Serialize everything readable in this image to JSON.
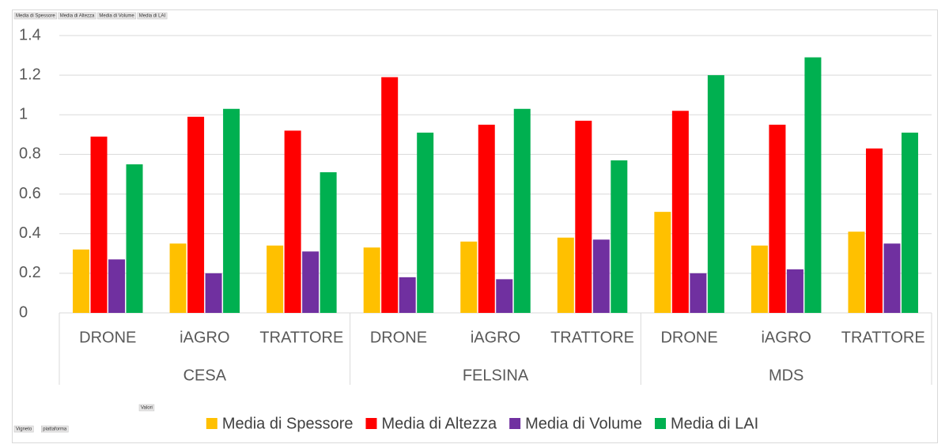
{
  "chart_data": {
    "type": "bar",
    "categories": [
      "DRONE",
      "iAGRO",
      "TRATTORE",
      "DRONE",
      "iAGRO",
      "TRATTORE",
      "DRONE",
      "iAGRO",
      "TRATTORE"
    ],
    "groups": [
      "CESA",
      "FELSINA",
      "MDS"
    ],
    "series": [
      {
        "name": "Media di Spessore",
        "color": "#ffc000",
        "values": [
          0.32,
          0.35,
          0.34,
          0.33,
          0.36,
          0.38,
          0.51,
          0.34,
          0.41
        ]
      },
      {
        "name": "Media di Altezza",
        "color": "#ff0000",
        "values": [
          0.89,
          0.99,
          0.92,
          1.19,
          0.95,
          0.97,
          1.02,
          0.95,
          0.83
        ]
      },
      {
        "name": "Media di Volume",
        "color": "#7030a0",
        "values": [
          0.27,
          0.2,
          0.31,
          0.18,
          0.17,
          0.37,
          0.2,
          0.22,
          0.35
        ]
      },
      {
        "name": "Media di LAI",
        "color": "#00b050",
        "values": [
          0.75,
          1.03,
          0.71,
          0.91,
          1.03,
          0.77,
          1.2,
          1.29,
          0.91
        ]
      }
    ],
    "ylim": [
      0,
      1.4
    ],
    "yticks": [
      0,
      0.2,
      0.4,
      0.6,
      0.8,
      1,
      1.2,
      1.4
    ],
    "grid": true,
    "field_buttons": {
      "values": [
        "Media di Spessore",
        "Media di Altezza",
        "Media di Volume",
        "Media di LAI"
      ],
      "data": "Valori",
      "rows": [
        "Vigneto",
        "piattaforma"
      ]
    }
  }
}
